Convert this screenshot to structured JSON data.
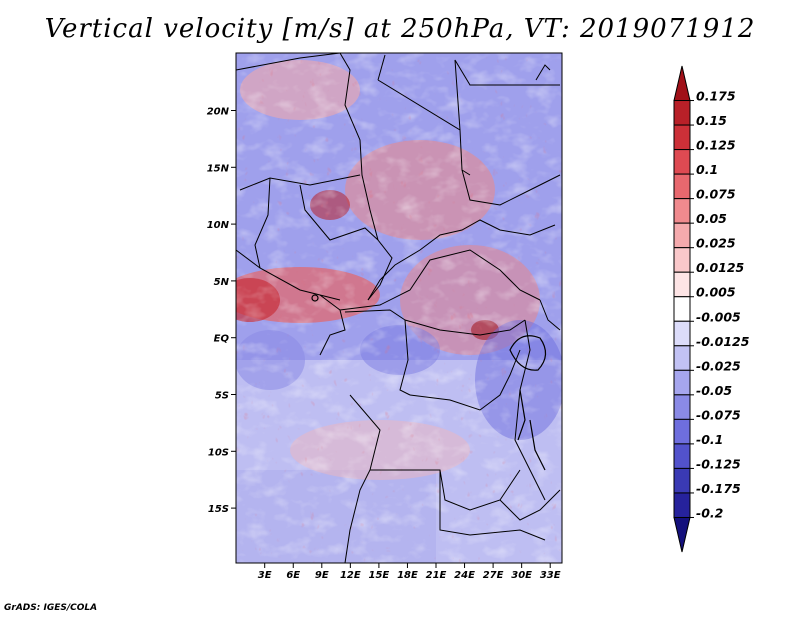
{
  "title": "Vertical velocity [m/s] at 250hPa, VT: 2019071912",
  "credit": "GrADS: IGES/COLA",
  "map": {
    "lon_labels": [
      "3E",
      "6E",
      "9E",
      "12E",
      "15E",
      "18E",
      "21E",
      "24E",
      "27E",
      "30E",
      "33E"
    ],
    "lat_labels": [
      "20N",
      "15N",
      "10N",
      "5N",
      "EQ",
      "5S",
      "10S",
      "15S"
    ]
  },
  "colorbar": {
    "labels": [
      "0.175",
      "0.15",
      "0.125",
      "0.1",
      "0.075",
      "0.05",
      "0.025",
      "0.0125",
      "0.005",
      "-0.005",
      "-0.0125",
      "-0.025",
      "-0.05",
      "-0.075",
      "-0.1",
      "-0.125",
      "-0.175",
      "-0.2"
    ],
    "colors": [
      "#a01018",
      "#b82028",
      "#cc3038",
      "#de4a52",
      "#e8686e",
      "#f08a8e",
      "#f5aaad",
      "#fac8ca",
      "#fde4e5",
      "#ffffff",
      "#dcdcfa",
      "#c2c2f4",
      "#a6a6ee",
      "#8a8ae6",
      "#6e6ede",
      "#5252cc",
      "#3a3ab4",
      "#26229c",
      "#14107c"
    ]
  },
  "colors": {
    "positive": "#cc3038",
    "negative": "#5252cc",
    "neutral": "#ffffff"
  }
}
